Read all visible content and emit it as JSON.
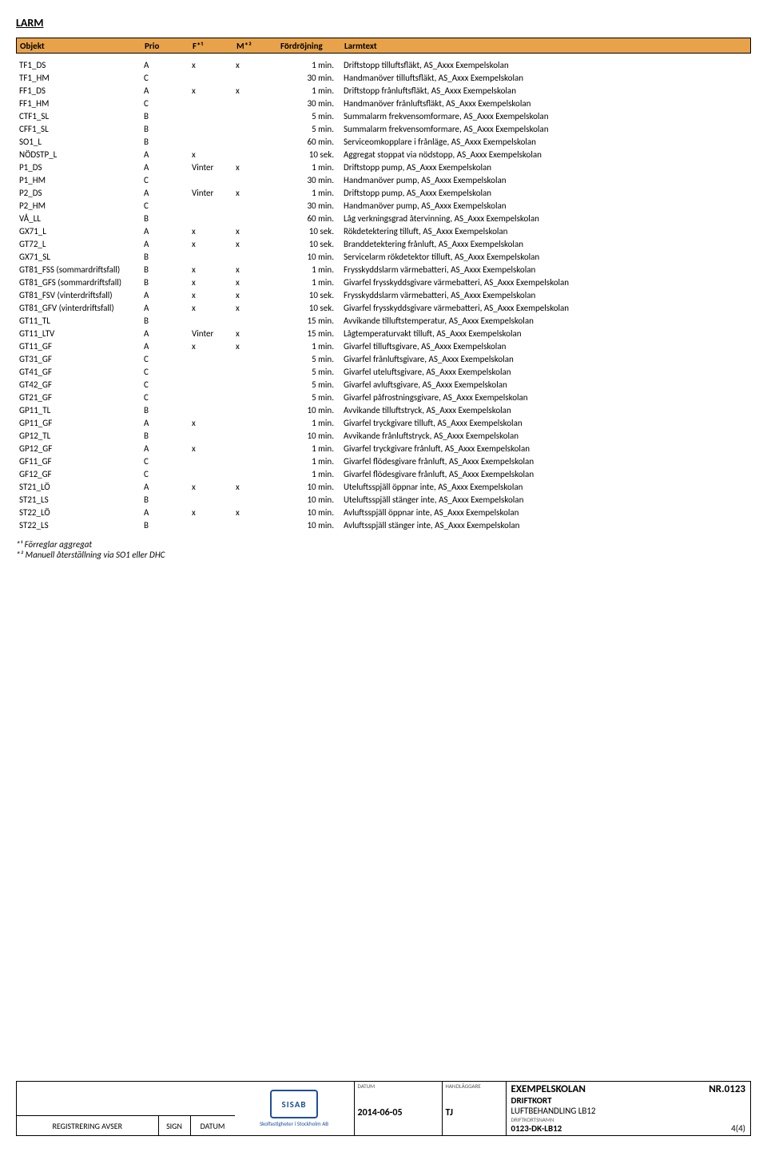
{
  "title": "LARM",
  "header": {
    "objekt": "Objekt",
    "prio": "Prio",
    "f": "F*¹",
    "m": "M*²",
    "ford": "Fördröjning",
    "larm": "Larmtext",
    "bg_color": "#e8a34a"
  },
  "rows": [
    {
      "obj": "TF1_DS",
      "prio": "A",
      "f": "x",
      "m": "x",
      "ford": "1 min.",
      "larm": "Driftstopp tilluftsfläkt, AS_Axxx Exempelskolan"
    },
    {
      "obj": "TF1_HM",
      "prio": "C",
      "f": "",
      "m": "",
      "ford": "30 min.",
      "larm": "Handmanöver tilluftsfläkt, AS_Axxx Exempelskolan"
    },
    {
      "obj": "FF1_DS",
      "prio": "A",
      "f": "x",
      "m": "x",
      "ford": "1 min.",
      "larm": "Driftstopp frånluftsfläkt, AS_Axxx Exempelskolan"
    },
    {
      "obj": "FF1_HM",
      "prio": "C",
      "f": "",
      "m": "",
      "ford": "30 min.",
      "larm": "Handmanöver frånluftsfläkt, AS_Axxx Exempelskolan"
    },
    {
      "obj": "CTF1_SL",
      "prio": "B",
      "f": "",
      "m": "",
      "ford": "5 min.",
      "larm": "Summalarm frekvensomformare, AS_Axxx Exempelskolan"
    },
    {
      "obj": "CFF1_SL",
      "prio": "B",
      "f": "",
      "m": "",
      "ford": "5 min.",
      "larm": "Summalarm frekvensomformare, AS_Axxx Exempelskolan"
    },
    {
      "obj": "SO1_L",
      "prio": "B",
      "f": "",
      "m": "",
      "ford": "60 min.",
      "larm": "Serviceomkopplare i frånläge, AS_Axxx Exempelskolan"
    },
    {
      "obj": "NÖDSTP_L",
      "prio": "A",
      "f": "x",
      "m": "",
      "ford": "10 sek.",
      "larm": "Aggregat stoppat via nödstopp, AS_Axxx Exempelskolan"
    },
    {
      "obj": "P1_DS",
      "prio": "A",
      "f": "Vinter",
      "m": "x",
      "ford": "1 min.",
      "larm": "Driftstopp pump, AS_Axxx Exempelskolan"
    },
    {
      "obj": "P1_HM",
      "prio": "C",
      "f": "",
      "m": "",
      "ford": "30 min.",
      "larm": "Handmanöver pump, AS_Axxx Exempelskolan"
    },
    {
      "obj": "P2_DS",
      "prio": "A",
      "f": "Vinter",
      "m": "x",
      "ford": "1 min.",
      "larm": "Driftstopp pump, AS_Axxx Exempelskolan"
    },
    {
      "obj": "P2_HM",
      "prio": "C",
      "f": "",
      "m": "",
      "ford": "30 min.",
      "larm": "Handmanöver pump, AS_Axxx Exempelskolan"
    },
    {
      "obj": "VÅ_LL",
      "prio": "B",
      "f": "",
      "m": "",
      "ford": "60 min.",
      "larm": "Låg verkningsgrad återvinning, AS_Axxx Exempelskolan"
    },
    {
      "obj": "GX71_L",
      "prio": "A",
      "f": "x",
      "m": "x",
      "ford": "10 sek.",
      "larm": "Rökdetektering tilluft, AS_Axxx Exempelskolan"
    },
    {
      "obj": "GT72_L",
      "prio": "A",
      "f": "x",
      "m": "x",
      "ford": "10 sek.",
      "larm": "Branddetektering frånluft, AS_Axxx Exempelskolan"
    },
    {
      "obj": "GX71_SL",
      "prio": "B",
      "f": "",
      "m": "",
      "ford": "10 min.",
      "larm": "Servicelarm rökdetektor tilluft, AS_Axxx Exempelskolan"
    },
    {
      "obj": "GT81_FSS (sommardriftsfall)",
      "prio": "B",
      "f": "x",
      "m": "x",
      "ford": "1 min.",
      "larm": "Frysskyddslarm värmebatteri, AS_Axxx Exempelskolan"
    },
    {
      "obj": "GT81_GFS (sommardriftsfall)",
      "prio": "B",
      "f": "x",
      "m": "x",
      "ford": "1 min.",
      "larm": "Givarfel frysskyddsgivare värmebatteri, AS_Axxx Exempelskolan"
    },
    {
      "obj": "GT81_FSV (vinterdriftsfall)",
      "prio": "A",
      "f": "x",
      "m": "x",
      "ford": "10 sek.",
      "larm": "Frysskyddslarm värmebatteri, AS_Axxx Exempelskolan"
    },
    {
      "obj": "GT81_GFV (vinterdriftsfall)",
      "prio": "A",
      "f": "x",
      "m": "x",
      "ford": "10 sek.",
      "larm": "Givarfel frysskyddsgivare värmebatteri, AS_Axxx Exempelskolan"
    },
    {
      "obj": "GT11_TL",
      "prio": "B",
      "f": "",
      "m": "",
      "ford": "15 min.",
      "larm": "Avvikande tilluftstemperatur, AS_Axxx Exempelskolan"
    },
    {
      "obj": "GT11_LTV",
      "prio": "A",
      "f": "Vinter",
      "m": "x",
      "ford": "15 min.",
      "larm": "Lågtemperaturvakt tilluft, AS_Axxx Exempelskolan"
    },
    {
      "obj": "GT11_GF",
      "prio": "A",
      "f": "x",
      "m": "x",
      "ford": "1 min.",
      "larm": "Givarfel tilluftsgivare, AS_Axxx Exempelskolan"
    },
    {
      "obj": "GT31_GF",
      "prio": "C",
      "f": "",
      "m": "",
      "ford": "5 min.",
      "larm": "Givarfel frånluftsgivare, AS_Axxx Exempelskolan"
    },
    {
      "obj": "GT41_GF",
      "prio": "C",
      "f": "",
      "m": "",
      "ford": "5 min.",
      "larm": "Givarfel uteluftsgivare, AS_Axxx Exempelskolan"
    },
    {
      "obj": "GT42_GF",
      "prio": "C",
      "f": "",
      "m": "",
      "ford": "5 min.",
      "larm": "Givarfel avluftsgivare, AS_Axxx Exempelskolan"
    },
    {
      "obj": "GT21_GF",
      "prio": "C",
      "f": "",
      "m": "",
      "ford": "5 min.",
      "larm": "Givarfel påfrostningsgivare, AS_Axxx Exempelskolan"
    },
    {
      "obj": "GP11_TL",
      "prio": "B",
      "f": "",
      "m": "",
      "ford": "10 min.",
      "larm": "Avvikande tilluftstryck, AS_Axxx Exempelskolan"
    },
    {
      "obj": "GP11_GF",
      "prio": "A",
      "f": "x",
      "m": "",
      "ford": "1 min.",
      "larm": "Givarfel tryckgivare tilluft, AS_Axxx Exempelskolan"
    },
    {
      "obj": "GP12_TL",
      "prio": "B",
      "f": "",
      "m": "",
      "ford": "10 min.",
      "larm": "Avvikande frånluftstryck, AS_Axxx Exempelskolan"
    },
    {
      "obj": "GP12_GF",
      "prio": "A",
      "f": "x",
      "m": "",
      "ford": "1 min.",
      "larm": "Givarfel tryckgivare frånluft, AS_Axxx Exempelskolan"
    },
    {
      "obj": "GF11_GF",
      "prio": "C",
      "f": "",
      "m": "",
      "ford": "1 min.",
      "larm": "Givarfel flödesgivare frånluft, AS_Axxx Exempelskolan"
    },
    {
      "obj": "GF12_GF",
      "prio": "C",
      "f": "",
      "m": "",
      "ford": "1 min.",
      "larm": "Givarfel flödesgivare frånluft, AS_Axxx Exempelskolan"
    },
    {
      "obj": "ST21_LÖ",
      "prio": "A",
      "f": "x",
      "m": "x",
      "ford": "10 min.",
      "larm": "Uteluftsspjäll öppnar inte, AS_Axxx Exempelskolan"
    },
    {
      "obj": "ST21_LS",
      "prio": "B",
      "f": "",
      "m": "",
      "ford": "10 min.",
      "larm": "Uteluftsspjäll stänger inte, AS_Axxx Exempelskolan"
    },
    {
      "obj": "ST22_LÖ",
      "prio": "A",
      "f": "x",
      "m": "x",
      "ford": "10 min.",
      "larm": "Avluftsspjäll öppnar inte, AS_Axxx Exempelskolan"
    },
    {
      "obj": "ST22_LS",
      "prio": "B",
      "f": "",
      "m": "",
      "ford": "10 min.",
      "larm": "Avluftsspjäll stänger inte, AS_Axxx Exempelskolan"
    }
  ],
  "notes": {
    "n1": "*¹ Förreglar aggregat",
    "n2": "*² Manuell återställning via SO1 eller DHC"
  },
  "footer": {
    "reg_label": "REGISTRERING AVSER",
    "sign_label": "SIGN",
    "datum_label": "DATUM",
    "logo_text": "SISAB",
    "logo_sub": "Skolfastigheter i Stockholm AB",
    "datum_col_label": "DATUM",
    "datum_val": "2014-06-05",
    "handl_col_label": "HANDLÄGGARE",
    "handl_val": "TJ",
    "title1": "EXEMPELSKOLAN",
    "nr": "NR.0123",
    "title2": "DRIFTKORT",
    "title3": "LUFTBEHANDLING LB12",
    "dk_label": "DRIFTKORTSNAMN",
    "dk_val": "0123-DK-LB12",
    "page": "4(4)"
  }
}
